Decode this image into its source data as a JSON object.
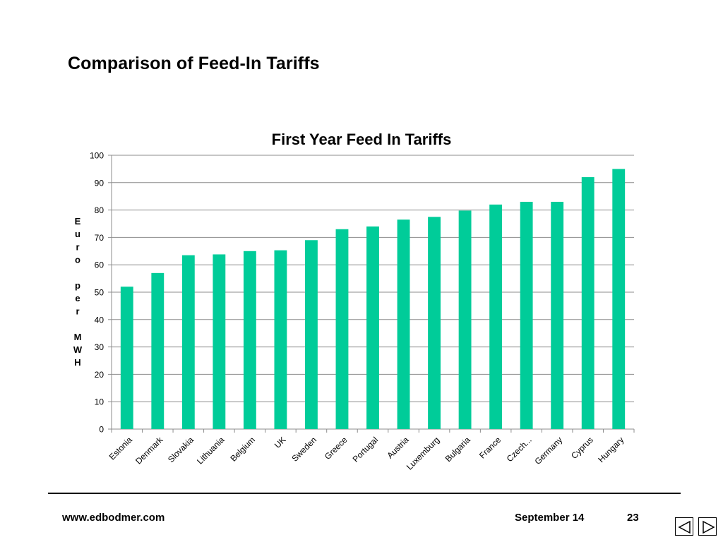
{
  "slide": {
    "title": "Comparison of Feed-In Tariffs"
  },
  "chart_data": {
    "type": "bar",
    "title": "First Year Feed In Tariffs",
    "ylabel": "Euro per MWH",
    "ylabel_lines": [
      "E",
      "u",
      "r",
      "o",
      "",
      "p",
      "e",
      "r",
      "",
      "M",
      "W",
      "H"
    ],
    "xlabel": "",
    "ylim": [
      0,
      100
    ],
    "yticks": [
      0,
      10,
      20,
      30,
      40,
      50,
      60,
      70,
      80,
      90,
      100
    ],
    "grid": true,
    "legend": "none",
    "color": "#00CC99",
    "categories": [
      "Estonia",
      "Denmark",
      "Slovakia",
      "Lithuania",
      "Belgium",
      "UK",
      "Sweden",
      "Greece",
      "Portugal",
      "Austria",
      "Luxemburg",
      "Bulgaria",
      "France",
      "Czech...",
      "Germany",
      "Cyprus",
      "Hungary"
    ],
    "values": [
      52,
      57,
      63.5,
      63.8,
      65,
      65.3,
      69,
      73,
      74,
      76.5,
      77.5,
      79.8,
      82,
      83,
      83,
      92,
      95
    ]
  },
  "footer": {
    "website": "www.edbodmer.com",
    "date": "September 14",
    "page_number": "23"
  },
  "nav": {
    "prev_icon": "triangle-left-icon",
    "next_icon": "triangle-right-icon"
  }
}
